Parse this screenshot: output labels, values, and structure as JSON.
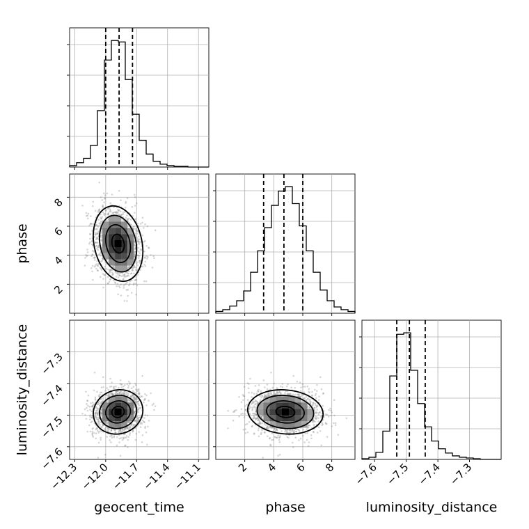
{
  "chart_data": {
    "type": "scatter",
    "title": "",
    "parameters": [
      {
        "name": "geocent_time",
        "label": "geocent_time",
        "range": [
          -12.35,
          -11.0
        ],
        "ticks": [
          -12.3,
          -12.0,
          -11.7,
          -11.4,
          -11.1
        ],
        "tick_labels": [
          "−12.3",
          "−12.0",
          "−11.7",
          "−11.4",
          "−11.1"
        ],
        "mean": -11.88,
        "std": 0.12,
        "quantiles": [
          -12.0,
          -11.87,
          -11.74
        ]
      },
      {
        "name": "phase",
        "label": "phase",
        "range": [
          0,
          9.6
        ],
        "ticks": [
          2,
          4,
          6,
          8
        ],
        "tick_labels": [
          "2",
          "4",
          "6",
          "8"
        ],
        "mean": 4.8,
        "std": 1.3,
        "quantiles": [
          3.3,
          4.7,
          6.0
        ]
      },
      {
        "name": "luminosity_distance",
        "label": "luminosity_distance",
        "range": [
          -7.64,
          -7.2
        ],
        "ticks": [
          -7.6,
          -7.5,
          -7.4,
          -7.3
        ],
        "tick_labels": [
          "−7.6",
          "−7.5",
          "−7.4",
          "−7.3"
        ],
        "mean": -7.49,
        "std": 0.035,
        "quantiles": [
          -7.53,
          -7.49,
          -7.44
        ]
      }
    ],
    "histograms": [
      {
        "parameter": "geocent_time",
        "bins": 20,
        "counts": [
          2,
          6,
          12,
          30,
          78,
          148,
          175,
          173,
          121,
          73,
          37,
          18,
          8,
          4,
          2,
          1,
          1,
          0,
          0,
          0
        ]
      },
      {
        "parameter": "phase",
        "bins": 20,
        "counts": [
          2,
          4,
          8,
          14,
          25,
          46,
          70,
          96,
          121,
          137,
          142,
          123,
          98,
          70,
          46,
          26,
          14,
          7,
          4,
          2
        ]
      },
      {
        "parameter": "luminosity_distance",
        "bins": 20,
        "counts": [
          1,
          3,
          10,
          40,
          118,
          177,
          179,
          126,
          79,
          46,
          26,
          15,
          9,
          5,
          3,
          2,
          1,
          0,
          0,
          0
        ]
      }
    ],
    "correlations": [
      {
        "x": "geocent_time",
        "y": "phase",
        "rho": -0.2
      },
      {
        "x": "geocent_time",
        "y": "luminosity_distance",
        "rho": 0.08
      },
      {
        "x": "phase",
        "y": "luminosity_distance",
        "rho": -0.1
      }
    ],
    "contour_levels_sigma": [
      0.5,
      1.0,
      1.5,
      2.0
    ],
    "grid": true,
    "legend": "none"
  }
}
